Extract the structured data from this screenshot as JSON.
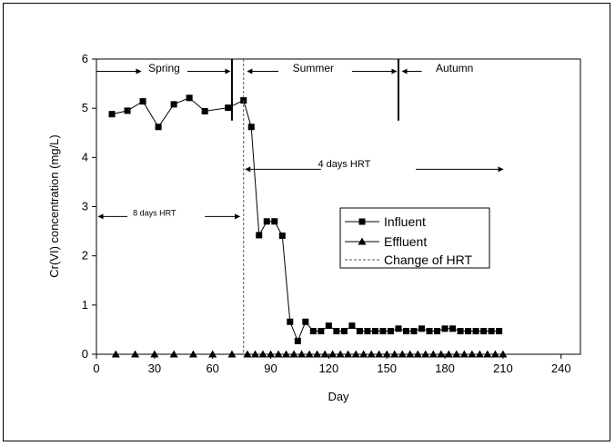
{
  "chart_data": {
    "type": "line",
    "xlabel": "Day",
    "ylabel": "Cr(VI) concentration (mg/L)",
    "xlim": [
      0,
      250
    ],
    "ylim": [
      0,
      6
    ],
    "x_ticks": [
      0,
      30,
      60,
      90,
      120,
      150,
      180,
      210,
      240
    ],
    "y_ticks": [
      0,
      1,
      2,
      3,
      4,
      5,
      6
    ],
    "grid": false,
    "legend_position": "center-right",
    "series": [
      {
        "name": "Influent",
        "marker": "square",
        "color": "#000000",
        "x": [
          8,
          16,
          24,
          32,
          40,
          48,
          56,
          68,
          76,
          80,
          84,
          88,
          92,
          96,
          100,
          104,
          108,
          112,
          116,
          120,
          124,
          128,
          132,
          136,
          140,
          144,
          148,
          152,
          156,
          160,
          164,
          168,
          172,
          176,
          180,
          184,
          188,
          192,
          196,
          200,
          204,
          208
        ],
        "y": [
          4.88,
          4.95,
          5.14,
          4.62,
          5.08,
          5.21,
          4.94,
          5.01,
          5.16,
          4.62,
          2.42,
          2.7,
          2.7,
          2.41,
          0.66,
          0.27,
          0.66,
          0.47,
          0.47,
          0.58,
          0.47,
          0.47,
          0.58,
          0.47,
          0.47,
          0.47,
          0.47,
          0.47,
          0.52,
          0.47,
          0.47,
          0.52,
          0.47,
          0.47,
          0.52,
          0.52,
          0.47,
          0.47,
          0.47,
          0.47,
          0.47,
          0.47
        ]
      },
      {
        "name": "Effluent",
        "marker": "triangle",
        "color": "#000000",
        "x": [
          10,
          20,
          30,
          40,
          50,
          60,
          70,
          78,
          82,
          86,
          90,
          94,
          98,
          102,
          106,
          110,
          114,
          118,
          122,
          126,
          130,
          134,
          138,
          142,
          146,
          150,
          154,
          158,
          162,
          166,
          170,
          174,
          178,
          182,
          186,
          190,
          194,
          198,
          202,
          206,
          210
        ],
        "y": [
          0,
          0,
          0,
          0,
          0,
          0,
          0,
          0,
          0,
          0,
          0,
          0,
          0,
          0,
          0,
          0,
          0,
          0,
          0,
          0,
          0,
          0,
          0,
          0,
          0,
          0,
          0,
          0,
          0,
          0,
          0,
          0,
          0,
          0,
          0,
          0,
          0,
          0,
          0,
          0,
          0
        ]
      },
      {
        "name": "Change of HRT",
        "style": "dashed-vertical",
        "x": 76
      }
    ],
    "season_dividers": [
      70,
      156
    ],
    "annotations": {
      "spring": "Spring",
      "summer": "Summer",
      "autumn": "Autumn",
      "hrt_4": "4 days HRT",
      "hrt_8": "8 days HRT"
    }
  }
}
